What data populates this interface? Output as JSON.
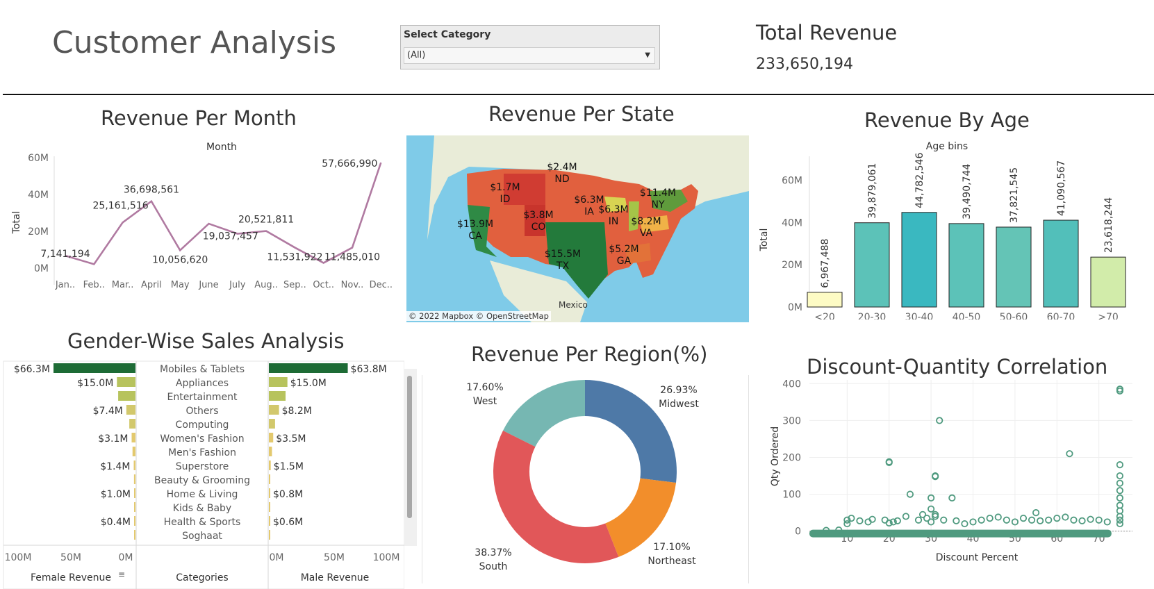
{
  "header": {
    "title": "Customer Analysis",
    "filter_label": "Select Category",
    "filter_value": "(All)",
    "kpi_title": "Total Revenue",
    "kpi_value": "233,650,194"
  },
  "panels": {
    "month_title": "Revenue Per Month",
    "state_title": "Revenue Per State",
    "age_title": "Revenue By Age",
    "gender_title": "Gender-Wise Sales Analysis",
    "region_title": "Revenue Per Region(%)",
    "discount_title": "Discount-Quantity Correlation"
  },
  "map": {
    "attribution": "© 2022 Mapbox © OpenStreetMap",
    "country_label": "Mexico",
    "labels": [
      {
        "value": "$2.4M",
        "state": "ND"
      },
      {
        "value": "$1.7M",
        "state": "ID"
      },
      {
        "value": "$6.3M",
        "state": "IA"
      },
      {
        "value": "$11.4M",
        "state": "NY"
      },
      {
        "value": "$3.8M",
        "state": "CO"
      },
      {
        "value": "$6.3M",
        "state": "IN"
      },
      {
        "value": "$8.2M",
        "state": "VA"
      },
      {
        "value": "$13.9M",
        "state": "CA"
      },
      {
        "value": "$5.2M",
        "state": "GA"
      },
      {
        "value": "$15.5M",
        "state": "TX"
      }
    ]
  },
  "chart_data": [
    {
      "type": "line",
      "title": "Revenue Per Month",
      "xlabel": "Month",
      "ylabel": "Total",
      "categories": [
        "Jan..",
        "Feb..",
        "Mar..",
        "April",
        "May",
        "June",
        "July",
        "Aug..",
        "Sep..",
        "Oct..",
        "Nov..",
        "Dec.."
      ],
      "values": [
        7141194,
        2500000,
        25161516,
        36698561,
        10056620,
        24500000,
        19037457,
        20521811,
        11531922,
        3200000,
        11485010,
        57666990
      ],
      "labels": [
        "7,141,194",
        null,
        "25,161,516",
        "36,698,561",
        "10,056,620",
        null,
        "19,037,457",
        "20,521,811",
        "11,531,922",
        null,
        "11,485,010",
        "57,666,990"
      ],
      "yticks": [
        "0M",
        "20M",
        "40M",
        "60M"
      ],
      "ylim": [
        0,
        63000000
      ],
      "color": "#b07aa1"
    },
    {
      "type": "bar",
      "title": "Revenue By Age",
      "xlabel": "Age bins",
      "ylabel": "Total",
      "categories": [
        "<20",
        "20-30",
        "30-40",
        "40-50",
        "50-60",
        "60-70",
        ">70"
      ],
      "values": [
        6967488,
        39879061,
        44782546,
        39490744,
        37821545,
        41090567,
        23618244
      ],
      "labels": [
        "6,967,488",
        "39,879,061",
        "44,782,546",
        "39,490,744",
        "37,821,545",
        "41,090,567",
        "23,618,244"
      ],
      "colors": [
        "#fdfbc4",
        "#5cc2b8",
        "#3ab8c0",
        "#5cc2b8",
        "#64c4b6",
        "#52bfba",
        "#d2ecaa"
      ],
      "yticks": [
        "0M",
        "20M",
        "40M",
        "60M"
      ],
      "ylim": [
        0,
        72000000
      ]
    },
    {
      "type": "bar",
      "orientation": "horizontal-butterfly",
      "title": "Gender-Wise Sales Analysis",
      "categories": [
        "Mobiles & Tablets",
        "Appliances",
        "Entertainment",
        "Others",
        "Computing",
        "Women's Fashion",
        "Men's Fashion",
        "Superstore",
        "Beauty & Grooming",
        "Home & Living",
        "Kids & Baby",
        "Health & Sports",
        "Soghaat"
      ],
      "series": [
        {
          "name": "Female Revenue",
          "values": [
            66.3,
            15.0,
            14.0,
            7.4,
            5.0,
            3.1,
            2.4,
            1.4,
            1.2,
            1.0,
            0.8,
            0.4,
            0.3
          ],
          "labels": [
            "$66.3M",
            "$15.0M",
            null,
            "$7.4M",
            null,
            "$3.1M",
            null,
            "$1.4M",
            null,
            "$1.0M",
            null,
            "$0.4M",
            null
          ]
        },
        {
          "name": "Male Revenue",
          "values": [
            63.8,
            15.0,
            13.5,
            8.2,
            5.0,
            3.5,
            2.5,
            1.5,
            1.1,
            0.8,
            0.7,
            0.6,
            0.3
          ],
          "labels": [
            "$63.8M",
            "$15.0M",
            null,
            "$8.2M",
            null,
            "$3.5M",
            null,
            "$1.5M",
            null,
            "$0.8M",
            null,
            "$0.6M",
            null
          ]
        }
      ],
      "female_axis_ticks": [
        "100M",
        "50M",
        "0M"
      ],
      "male_axis_ticks": [
        "0M",
        "50M",
        "100M"
      ],
      "column_headers": [
        "Female Revenue",
        "Categories",
        "Male Revenue"
      ],
      "xlim": [
        0,
        100
      ]
    },
    {
      "type": "pie",
      "title": "Revenue Per Region(%)",
      "categories": [
        "Midwest",
        "Northeast",
        "South",
        "West"
      ],
      "values": [
        26.93,
        17.1,
        38.37,
        17.6
      ],
      "labels": [
        "26.93%",
        "17.10%",
        "38.37%",
        "17.60%"
      ],
      "colors": [
        "#4e79a7",
        "#f28e2b",
        "#e15759",
        "#76b7b2"
      ]
    },
    {
      "type": "scatter",
      "title": "Discount-Quantity Correlation",
      "xlabel": "Discount Percent",
      "ylabel": "Qty Ordered",
      "xticks": [
        "10",
        "20",
        "30",
        "40",
        "50",
        "60",
        "70"
      ],
      "yticks": [
        "0",
        "100",
        "200",
        "300",
        "400"
      ],
      "xlim": [
        1,
        78
      ],
      "ylim": [
        -10,
        410
      ],
      "color": "#4f9a7f",
      "points": [
        [
          5,
          2
        ],
        [
          8,
          3
        ],
        [
          10,
          20
        ],
        [
          10,
          30
        ],
        [
          11,
          35
        ],
        [
          13,
          28
        ],
        [
          15,
          25
        ],
        [
          16,
          32
        ],
        [
          19,
          30
        ],
        [
          20,
          186
        ],
        [
          20,
          188
        ],
        [
          20,
          22
        ],
        [
          21,
          25
        ],
        [
          22,
          28
        ],
        [
          24,
          40
        ],
        [
          25,
          100
        ],
        [
          27,
          30
        ],
        [
          28,
          45
        ],
        [
          29,
          35
        ],
        [
          30,
          60
        ],
        [
          30,
          90
        ],
        [
          30,
          25
        ],
        [
          31,
          148
        ],
        [
          31,
          150
        ],
        [
          31,
          40
        ],
        [
          31,
          45
        ],
        [
          32,
          300
        ],
        [
          33,
          30
        ],
        [
          35,
          90
        ],
        [
          36,
          28
        ],
        [
          38,
          20
        ],
        [
          40,
          25
        ],
        [
          42,
          30
        ],
        [
          44,
          35
        ],
        [
          46,
          38
        ],
        [
          48,
          30
        ],
        [
          50,
          25
        ],
        [
          52,
          35
        ],
        [
          54,
          30
        ],
        [
          55,
          50
        ],
        [
          56,
          28
        ],
        [
          58,
          30
        ],
        [
          60,
          35
        ],
        [
          62,
          38
        ],
        [
          63,
          210
        ],
        [
          64,
          30
        ],
        [
          66,
          28
        ],
        [
          68,
          32
        ],
        [
          70,
          30
        ],
        [
          72,
          25
        ],
        [
          75,
          380
        ],
        [
          75,
          385
        ],
        [
          75,
          180
        ],
        [
          75,
          150
        ],
        [
          75,
          130
        ],
        [
          75,
          110
        ],
        [
          75,
          90
        ],
        [
          75,
          70
        ],
        [
          75,
          55
        ],
        [
          75,
          40
        ],
        [
          75,
          30
        ],
        [
          75,
          20
        ]
      ]
    }
  ]
}
